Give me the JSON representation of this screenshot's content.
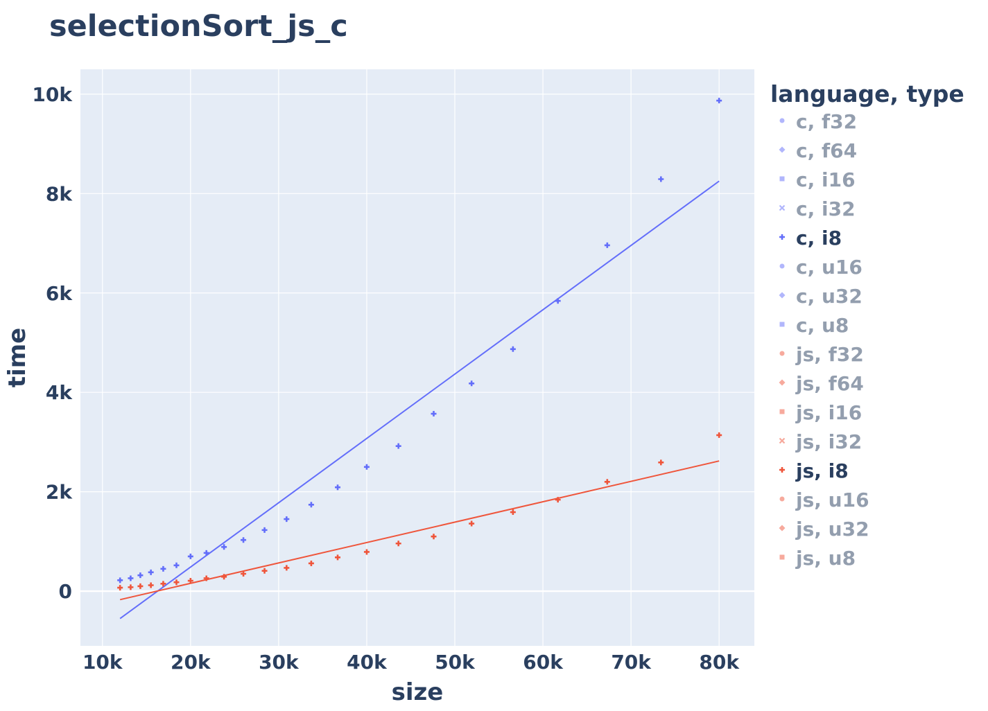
{
  "chart_data": {
    "type": "scatter",
    "title": "selectionSort_js_c",
    "xlabel": "size",
    "ylabel": "time",
    "xlim": [
      7500,
      84000
    ],
    "ylim": [
      -1100,
      10500
    ],
    "x_ticks": [
      10000,
      20000,
      30000,
      40000,
      50000,
      60000,
      70000,
      80000
    ],
    "x_tick_labels": [
      "10k",
      "20k",
      "30k",
      "40k",
      "50k",
      "60k",
      "70k",
      "80k"
    ],
    "y_ticks": [
      0,
      2000,
      4000,
      6000,
      8000,
      10000
    ],
    "y_tick_labels": [
      "0",
      "2k",
      "4k",
      "6k",
      "8k",
      "10k"
    ],
    "grid": true,
    "legend": {
      "title": "language, type",
      "placement": "right",
      "items": [
        {
          "label": "c, f32",
          "active": false,
          "color": "#636efa",
          "symbol": "circle"
        },
        {
          "label": "c, f64",
          "active": false,
          "color": "#636efa",
          "symbol": "diamond"
        },
        {
          "label": "c, i16",
          "active": false,
          "color": "#636efa",
          "symbol": "square"
        },
        {
          "label": "c, i32",
          "active": false,
          "color": "#636efa",
          "symbol": "x"
        },
        {
          "label": "c, i8",
          "active": true,
          "color": "#636efa",
          "symbol": "cross"
        },
        {
          "label": "c, u16",
          "active": false,
          "color": "#636efa",
          "symbol": "circle"
        },
        {
          "label": "c, u32",
          "active": false,
          "color": "#636efa",
          "symbol": "diamond"
        },
        {
          "label": "c, u8",
          "active": false,
          "color": "#636efa",
          "symbol": "square"
        },
        {
          "label": "js, f32",
          "active": false,
          "color": "#ef553b",
          "symbol": "circle"
        },
        {
          "label": "js, f64",
          "active": false,
          "color": "#ef553b",
          "symbol": "diamond"
        },
        {
          "label": "js, i16",
          "active": false,
          "color": "#ef553b",
          "symbol": "square"
        },
        {
          "label": "js, i32",
          "active": false,
          "color": "#ef553b",
          "symbol": "x"
        },
        {
          "label": "js, i8",
          "active": true,
          "color": "#ef553b",
          "symbol": "cross"
        },
        {
          "label": "js, u16",
          "active": false,
          "color": "#ef553b",
          "symbol": "circle"
        },
        {
          "label": "js, u32",
          "active": false,
          "color": "#ef553b",
          "symbol": "diamond"
        },
        {
          "label": "js, u8",
          "active": false,
          "color": "#ef553b",
          "symbol": "square"
        }
      ]
    },
    "x": [
      12000,
      13200,
      14300,
      15500,
      16900,
      18400,
      20000,
      21800,
      23800,
      26000,
      28400,
      30900,
      33700,
      36700,
      40000,
      43600,
      47600,
      51900,
      56600,
      61700,
      67300,
      73400,
      80000
    ],
    "series": [
      {
        "name": "c, i8",
        "color": "#636efa",
        "values": [
          220,
          260,
          320,
          380,
          450,
          520,
          700,
          770,
          890,
          1030,
          1230,
          1450,
          1740,
          2090,
          2500,
          2920,
          3570,
          4180,
          4870,
          5840,
          6960,
          8290,
          9870
        ],
        "trendline": [
          [
            12000,
            -550
          ],
          [
            80000,
            8250
          ]
        ]
      },
      {
        "name": "js, i8",
        "color": "#ef553b",
        "values": [
          70,
          80,
          100,
          120,
          150,
          180,
          210,
          260,
          290,
          350,
          410,
          470,
          560,
          680,
          790,
          960,
          1100,
          1360,
          1590,
          1840,
          2200,
          2590,
          3140
        ],
        "trendline": [
          [
            12000,
            -170
          ],
          [
            80000,
            2620
          ]
        ]
      }
    ]
  }
}
